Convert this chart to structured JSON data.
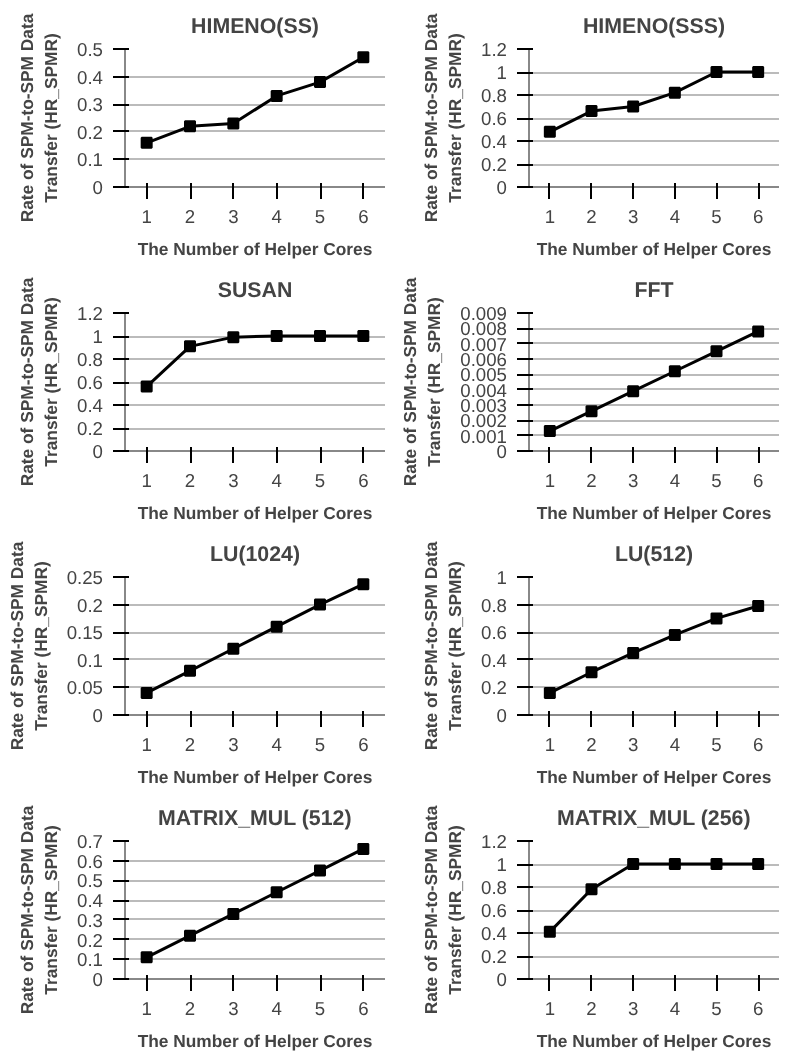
{
  "chart_data": [
    {
      "type": "line",
      "title": "HIMENO(SS)",
      "xlabel": "The Number of Helper Cores",
      "ylabel": "Rate of SPM-to-SPM Data\nTransfer (HR_SPMR)",
      "categories": [
        "1",
        "2",
        "3",
        "4",
        "5",
        "6"
      ],
      "series": [
        {
          "color": "#000000",
          "values": [
            0.16,
            0.22,
            0.23,
            0.33,
            0.38,
            0.47
          ]
        }
      ],
      "ylim": [
        0,
        0.5
      ],
      "yticks": [
        0,
        0.1,
        0.2,
        0.3,
        0.4,
        0.5
      ],
      "grid": "y",
      "marker": "square"
    },
    {
      "type": "line",
      "title": "HIMENO(SSS)",
      "xlabel": "The Number of Helper Cores",
      "ylabel": "Rate of SPM-to-SPM Data\nTransfer (HR_SPMR)",
      "categories": [
        "1",
        "2",
        "3",
        "4",
        "5",
        "6"
      ],
      "series": [
        {
          "color": "#000000",
          "values": [
            0.48,
            0.66,
            0.7,
            0.82,
            1.0,
            1.0
          ]
        }
      ],
      "ylim": [
        0,
        1.2
      ],
      "yticks": [
        0,
        0.2,
        0.4,
        0.6,
        0.8,
        1,
        1.2
      ],
      "grid": "y",
      "marker": "square"
    },
    {
      "type": "line",
      "title": "SUSAN",
      "xlabel": "The Number of Helper Cores",
      "ylabel": "Rate of SPM-to-SPM Data\nTransfer (HR_SPMR)",
      "categories": [
        "1",
        "2",
        "3",
        "4",
        "5",
        "6"
      ],
      "series": [
        {
          "color": "#000000",
          "values": [
            0.56,
            0.91,
            0.99,
            1.0,
            1.0,
            1.0
          ]
        }
      ],
      "ylim": [
        0,
        1.2
      ],
      "yticks": [
        0,
        0.2,
        0.4,
        0.6,
        0.8,
        1,
        1.2
      ],
      "grid": "y",
      "marker": "square"
    },
    {
      "type": "line",
      "title": "FFT",
      "xlabel": "The Number of Helper Cores",
      "ylabel": "Rate of SPM-to-SPM Data\nTransfer (HR_SPMR)",
      "categories": [
        "1",
        "2",
        "3",
        "4",
        "5",
        "6"
      ],
      "series": [
        {
          "color": "#000000",
          "values": [
            0.0013,
            0.0026,
            0.0039,
            0.0052,
            0.0065,
            0.0078
          ]
        }
      ],
      "ylim": [
        0,
        0.009
      ],
      "yticks": [
        0,
        0.001,
        0.002,
        0.003,
        0.004,
        0.005,
        0.006,
        0.007,
        0.008,
        0.009
      ],
      "grid": "y",
      "marker": "square"
    },
    {
      "type": "line",
      "title": "LU(1024)",
      "xlabel": "The Number of Helper Cores",
      "ylabel": "Rate of SPM-to-SPM Data\nTransfer (HR_SPMR)",
      "categories": [
        "1",
        "2",
        "3",
        "4",
        "5",
        "6"
      ],
      "series": [
        {
          "color": "#000000",
          "values": [
            0.04,
            0.08,
            0.12,
            0.16,
            0.2,
            0.237
          ]
        }
      ],
      "ylim": [
        0,
        0.25
      ],
      "yticks": [
        0,
        0.05,
        0.1,
        0.15,
        0.2,
        0.25
      ],
      "grid": "y",
      "marker": "square"
    },
    {
      "type": "line",
      "title": "LU(512)",
      "xlabel": "The Number of Helper Cores",
      "ylabel": "Rate of SPM-to-SPM Data\nTransfer (HR_SPMR)",
      "categories": [
        "1",
        "2",
        "3",
        "4",
        "5",
        "6"
      ],
      "series": [
        {
          "color": "#000000",
          "values": [
            0.16,
            0.31,
            0.45,
            0.58,
            0.7,
            0.79
          ]
        }
      ],
      "ylim": [
        0,
        1
      ],
      "yticks": [
        0,
        0.2,
        0.4,
        0.6,
        0.8,
        1
      ],
      "grid": "y",
      "marker": "square"
    },
    {
      "type": "line",
      "title": "MATRIX_MUL (512)",
      "xlabel": "The Number of Helper Cores",
      "ylabel": "Rate of SPM-to-SPM Data\nTransfer (HR_SPMR)",
      "categories": [
        "1",
        "2",
        "3",
        "4",
        "5",
        "6"
      ],
      "series": [
        {
          "color": "#000000",
          "values": [
            0.11,
            0.22,
            0.33,
            0.44,
            0.55,
            0.66
          ]
        }
      ],
      "ylim": [
        0,
        0.7
      ],
      "yticks": [
        0,
        0.1,
        0.2,
        0.3,
        0.4,
        0.5,
        0.6,
        0.7
      ],
      "grid": "y",
      "marker": "square"
    },
    {
      "type": "line",
      "title": "MATRIX_MUL (256)",
      "xlabel": "The Number of Helper Cores",
      "ylabel": "Rate of SPM-to-SPM Data\nTransfer (HR_SPMR)",
      "categories": [
        "1",
        "2",
        "3",
        "4",
        "5",
        "6"
      ],
      "series": [
        {
          "color": "#000000",
          "values": [
            0.41,
            0.78,
            1.0,
            1.0,
            1.0,
            1.0
          ]
        }
      ],
      "ylim": [
        0,
        1.2
      ],
      "yticks": [
        0,
        0.2,
        0.4,
        0.6,
        0.8,
        1,
        1.2
      ],
      "grid": "y",
      "marker": "square"
    }
  ]
}
